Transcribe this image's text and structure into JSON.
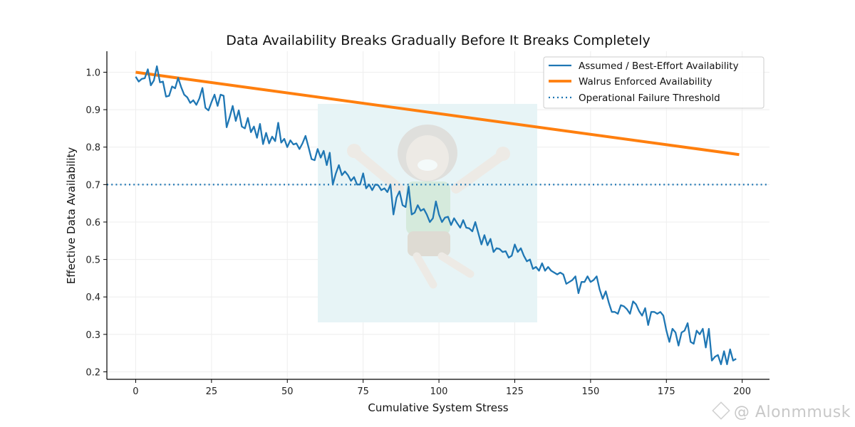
{
  "chart_data": {
    "type": "line",
    "title": "Data Availability Breaks Gradually Before It Breaks Completely",
    "xlabel": "Cumulative System Stress",
    "ylabel": "Effective Data Availability",
    "xlim": [
      -9.5,
      209
    ],
    "ylim": [
      0.18,
      1.056
    ],
    "xticks": [
      0,
      25,
      50,
      75,
      100,
      125,
      150,
      175,
      200
    ],
    "xtick_labels": [
      "0",
      "25",
      "50",
      "75",
      "100",
      "125",
      "150",
      "175",
      "200"
    ],
    "yticks": [
      0.2,
      0.3,
      0.4,
      0.5,
      0.6,
      0.7,
      0.8,
      0.9,
      1.0
    ],
    "ytick_labels": [
      "0.2",
      "0.3",
      "0.4",
      "0.5",
      "0.6",
      "0.7",
      "0.8",
      "0.9",
      "1.0"
    ],
    "grid": true,
    "legend_position": "top-right",
    "series": [
      {
        "name": "Assumed / Best-Effort Availability",
        "style": "solid",
        "color": "#1f77b4",
        "x_start": 0,
        "x_step": 1,
        "values": [
          0.988,
          0.975,
          0.982,
          0.984,
          1.008,
          0.965,
          0.978,
          1.016,
          0.973,
          0.975,
          0.935,
          0.937,
          0.962,
          0.957,
          0.985,
          0.96,
          0.94,
          0.933,
          0.918,
          0.925,
          0.913,
          0.93,
          0.958,
          0.905,
          0.898,
          0.92,
          0.94,
          0.91,
          0.94,
          0.937,
          0.853,
          0.88,
          0.91,
          0.87,
          0.898,
          0.855,
          0.85,
          0.878,
          0.84,
          0.855,
          0.825,
          0.862,
          0.808,
          0.838,
          0.81,
          0.828,
          0.816,
          0.865,
          0.812,
          0.822,
          0.8,
          0.818,
          0.807,
          0.81,
          0.795,
          0.81,
          0.83,
          0.8,
          0.768,
          0.765,
          0.795,
          0.772,
          0.79,
          0.752,
          0.785,
          0.7,
          0.73,
          0.752,
          0.725,
          0.735,
          0.725,
          0.71,
          0.72,
          0.7,
          0.7,
          0.73,
          0.69,
          0.7,
          0.685,
          0.7,
          0.698,
          0.685,
          0.69,
          0.68,
          0.7,
          0.62,
          0.665,
          0.682,
          0.645,
          0.64,
          0.695,
          0.62,
          0.625,
          0.645,
          0.63,
          0.635,
          0.62,
          0.6,
          0.61,
          0.655,
          0.62,
          0.6,
          0.612,
          0.614,
          0.592,
          0.61,
          0.597,
          0.585,
          0.605,
          0.585,
          0.583,
          0.575,
          0.6,
          0.57,
          0.54,
          0.565,
          0.538,
          0.555,
          0.52,
          0.53,
          0.528,
          0.52,
          0.522,
          0.505,
          0.51,
          0.54,
          0.52,
          0.53,
          0.51,
          0.495,
          0.5,
          0.475,
          0.48,
          0.47,
          0.49,
          0.47,
          0.48,
          0.47,
          0.465,
          0.46,
          0.465,
          0.46,
          0.435,
          0.44,
          0.445,
          0.455,
          0.41,
          0.44,
          0.44,
          0.455,
          0.44,
          0.445,
          0.455,
          0.42,
          0.395,
          0.415,
          0.385,
          0.36,
          0.36,
          0.355,
          0.378,
          0.375,
          0.367,
          0.355,
          0.388,
          0.38,
          0.362,
          0.35,
          0.37,
          0.325,
          0.36,
          0.36,
          0.355,
          0.36,
          0.35,
          0.31,
          0.28,
          0.315,
          0.305,
          0.27,
          0.305,
          0.31,
          0.33,
          0.28,
          0.275,
          0.31,
          0.3,
          0.315,
          0.265,
          0.315,
          0.23,
          0.24,
          0.245,
          0.22,
          0.255,
          0.22,
          0.26,
          0.23,
          0.235
        ]
      },
      {
        "name": "Walrus Enforced Availability",
        "style": "solid-thick",
        "color": "#ff7f0e",
        "x": [
          0,
          199
        ],
        "values": [
          1.0,
          0.78
        ]
      },
      {
        "name": "Operational Failure Threshold",
        "style": "dotted",
        "color": "#1f77b4",
        "y_constant": 0.7
      }
    ]
  },
  "overlay": {
    "description": "faded cartoon boy jumping with raised arms",
    "background_color": "#e6f3f5"
  },
  "watermark": {
    "text": "@ Alonmmusk",
    "icon": "diamond-logo-icon"
  }
}
